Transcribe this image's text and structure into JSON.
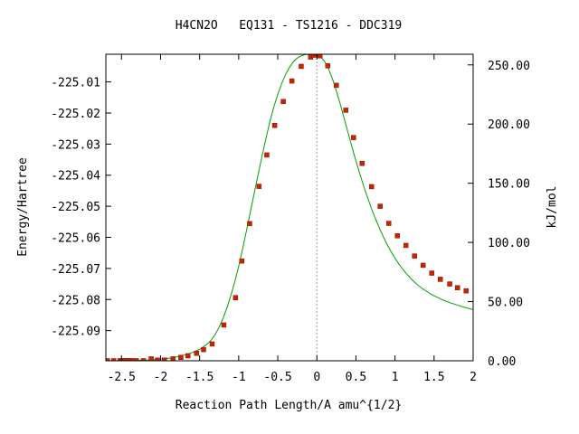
{
  "chart_data": {
    "type": "line",
    "title": "H4CN2O   EQ131 - TS1216 - DDC319",
    "xlabel": "Reaction Path Length/A amu^{1/2}",
    "ylabel": "Energy/Hartree",
    "y2label": "kJ/mol",
    "xlim": [
      -2.7,
      2.0
    ],
    "ylim": [
      -225.0997,
      -225.0011
    ],
    "y2lim": [
      0.0,
      259.0
    ],
    "grid": false,
    "x_ticks": [
      -2.5,
      -2,
      -1.5,
      -1,
      -0.5,
      0,
      0.5,
      1,
      1.5,
      2
    ],
    "x_tick_labels": [
      "-2.5",
      "-2",
      "-1.5",
      "-1",
      "-0.5",
      "0",
      "0.5",
      "1",
      "1.5",
      "2"
    ],
    "y_ticks": [
      -225.01,
      -225.02,
      -225.03,
      -225.04,
      -225.05,
      -225.06,
      -225.07,
      -225.08,
      -225.09
    ],
    "y_tick_labels": [
      "-225.01",
      "-225.02",
      "-225.03",
      "-225.04",
      "-225.05",
      "-225.06",
      "-225.07",
      "-225.08",
      "-225.09"
    ],
    "y2_ticks": [
      0,
      50,
      100,
      150,
      200,
      250
    ],
    "y2_tick_labels": [
      "0.00",
      "50.00",
      "100.00",
      "150.00",
      "200.00",
      "250.00"
    ],
    "ts_marker_x": 0,
    "colors": {
      "curve": "#00a000",
      "points": "#cc2200",
      "ts_line": "#999999",
      "axes": "#000000"
    },
    "series": [
      {
        "style": "curve",
        "x": [
          -2.7,
          -2.6,
          -2.5,
          -2.4,
          -2.3,
          -2.2,
          -2.1,
          -2.0,
          -1.9,
          -1.8,
          -1.7,
          -1.6,
          -1.5,
          -1.45,
          -1.4,
          -1.35,
          -1.3,
          -1.25,
          -1.2,
          -1.15,
          -1.1,
          -1.05,
          -1.0,
          -0.95,
          -0.9,
          -0.85,
          -0.8,
          -0.75,
          -0.7,
          -0.65,
          -0.6,
          -0.55,
          -0.5,
          -0.45,
          -0.4,
          -0.35,
          -0.3,
          -0.25,
          -0.2,
          -0.15,
          -0.1,
          -0.05,
          0.0,
          0.05,
          0.1,
          0.15,
          0.2,
          0.25,
          0.3,
          0.35,
          0.4,
          0.45,
          0.5,
          0.55,
          0.6,
          0.65,
          0.7,
          0.75,
          0.8,
          0.85,
          0.9,
          0.95,
          1.0,
          1.05,
          1.1,
          1.15,
          1.2,
          1.25,
          1.3,
          1.35,
          1.4,
          1.45,
          1.5,
          1.55,
          1.6,
          1.65,
          1.7,
          1.75,
          1.8,
          1.85,
          1.9,
          1.95,
          2.0
        ],
        "y": [
          -225.0997,
          -225.0997,
          -225.0997,
          -225.0996,
          -225.0996,
          -225.0995,
          -225.0994,
          -225.0992,
          -225.0989,
          -225.0985,
          -225.0979,
          -225.0971,
          -225.096,
          -225.0952,
          -225.0943,
          -225.093,
          -225.0912,
          -225.0889,
          -225.086,
          -225.0826,
          -225.0787,
          -225.0743,
          -225.0693,
          -225.0637,
          -225.0578,
          -225.0517,
          -225.0456,
          -225.0396,
          -225.0337,
          -225.028,
          -225.0227,
          -225.018,
          -225.014,
          -225.0105,
          -225.0076,
          -225.0053,
          -225.0035,
          -225.0023,
          -225.0016,
          -225.0012,
          -225.0011,
          -225.0011,
          -225.0013,
          -225.002,
          -225.0034,
          -225.0058,
          -225.009,
          -225.0129,
          -225.0172,
          -225.0218,
          -225.0264,
          -225.031,
          -225.0354,
          -225.0396,
          -225.0436,
          -225.0473,
          -225.0508,
          -225.054,
          -225.057,
          -225.0598,
          -225.0623,
          -225.0646,
          -225.0667,
          -225.0686,
          -225.0703,
          -225.0718,
          -225.0732,
          -225.0744,
          -225.0755,
          -225.0765,
          -225.0773,
          -225.0781,
          -225.0788,
          -225.0794,
          -225.08,
          -225.0805,
          -225.081,
          -225.0814,
          -225.0818,
          -225.0822,
          -225.0826,
          -225.0829,
          -225.0832
        ]
      },
      {
        "style": "points",
        "x": [
          -2.68,
          -2.6,
          -2.52,
          -2.49,
          -2.46,
          -2.43,
          -2.41,
          -2.38,
          -2.35,
          -2.31,
          -2.22,
          -2.12,
          -2.04,
          -1.95,
          -1.84,
          -1.74,
          -1.65,
          -1.54,
          -1.45,
          -1.34,
          -1.19,
          -1.04,
          -0.96,
          -0.86,
          -0.74,
          -0.64,
          -0.54,
          -0.43,
          -0.32,
          -0.2,
          -0.08,
          -0.04,
          0.0,
          0.04,
          0.14,
          0.25,
          0.37,
          0.47,
          0.58,
          0.7,
          0.81,
          0.92,
          1.03,
          1.14,
          1.25,
          1.36,
          1.47,
          1.58,
          1.7,
          1.8,
          1.91
        ],
        "y": [
          -225.0997,
          -225.0997,
          -225.0997,
          -225.0997,
          -225.0997,
          -225.0997,
          -225.0997,
          -225.0997,
          -225.0997,
          -225.0997,
          -225.0997,
          -225.0991,
          -225.0995,
          -225.0995,
          -225.0991,
          -225.0986,
          -225.0981,
          -225.0973,
          -225.0961,
          -225.0943,
          -225.0882,
          -225.0794,
          -225.0676,
          -225.0556,
          -225.0436,
          -225.0335,
          -225.024,
          -225.0163,
          -225.0097,
          -225.005,
          -225.002,
          -225.0014,
          -225.0012,
          -225.0016,
          -225.0048,
          -225.0111,
          -225.0191,
          -225.0279,
          -225.0362,
          -225.0437,
          -225.05,
          -225.0555,
          -225.0595,
          -225.0626,
          -225.066,
          -225.069,
          -225.0715,
          -225.0735,
          -225.075,
          -225.0762,
          -225.0772
        ]
      }
    ]
  }
}
